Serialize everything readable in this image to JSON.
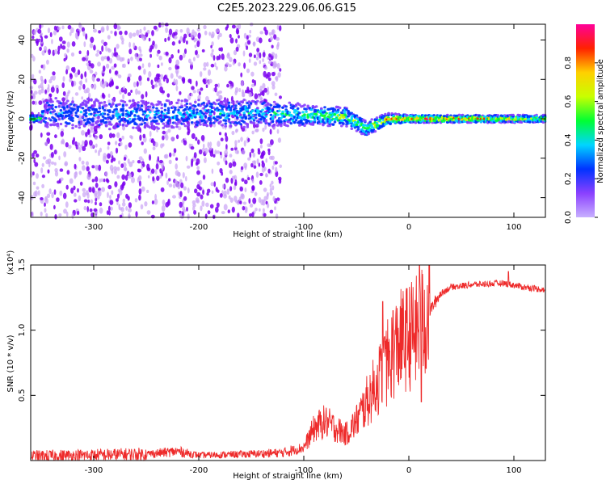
{
  "title": "C2E5.2023.229.06.06.G15",
  "colors": {
    "snr_line": "#ee2a2a",
    "spectrogram_sparse": "#c9a3f5",
    "spectrogram_dense": "#7a00f0",
    "colorbar": [
      "#c8b0ff",
      "#8a40ff",
      "#0033ff",
      "#00d5ff",
      "#00ff33",
      "#c8ff00",
      "#ffd000",
      "#ff2200",
      "#ff0099"
    ]
  },
  "chart_data": [
    {
      "type": "heatmap",
      "name": "spectrogram",
      "xlabel": "Height of straight line (km)",
      "ylabel": "Frequency (Hz)",
      "xlim": [
        -360,
        130
      ],
      "ylim": [
        -50,
        48
      ],
      "xticks": [
        -300,
        -200,
        -100,
        0,
        100
      ],
      "yticks": [
        -40,
        -20,
        0,
        20,
        40
      ],
      "colorbar": {
        "label": "Normalized spectral amplitude",
        "range": [
          0,
          1
        ],
        "ticks": [
          "0.0",
          "0.2",
          "0.4",
          "0.6",
          "0.8"
        ]
      },
      "profile": [
        {
          "x": -350,
          "center": 3,
          "width": 10,
          "amplitude": 0.3
        },
        {
          "x": -250,
          "center": 2,
          "width": 9,
          "amplitude": 0.35
        },
        {
          "x": -150,
          "center": 3,
          "width": 8,
          "amplitude": 0.4
        },
        {
          "x": -100,
          "center": 2,
          "width": 6,
          "amplitude": 0.5
        },
        {
          "x": -60,
          "center": 1,
          "width": 5,
          "amplitude": 0.6
        },
        {
          "x": -40,
          "center": -5,
          "width": 4,
          "amplitude": 0.55
        },
        {
          "x": -20,
          "center": 0,
          "width": 3,
          "amplitude": 0.8
        },
        {
          "x": 0,
          "center": 0,
          "width": 2,
          "amplitude": 0.85
        },
        {
          "x": 20,
          "center": 0,
          "width": 2,
          "amplitude": 0.9
        },
        {
          "x": 130,
          "center": 0,
          "width": 2,
          "amplitude": 0.6
        }
      ],
      "noise_region": {
        "x_from": -360,
        "x_to": -122,
        "y_from": -50,
        "y_to": 48
      }
    },
    {
      "type": "line",
      "name": "snr",
      "xlabel": "Height of straight line (km)",
      "ylabel": "SNR (10 * v/v)",
      "scale_label": "(x10⁴)",
      "xlim": [
        -360,
        130
      ],
      "ylim": [
        0,
        1.5
      ],
      "xticks": [
        -300,
        -200,
        -100,
        0,
        100
      ],
      "yticks": [
        0.5,
        1.0,
        1.5
      ],
      "ytick_labels": [
        "0.5",
        "1.0",
        "1.5"
      ],
      "x": [
        -360,
        -300,
        -250,
        -220,
        -200,
        -150,
        -120,
        -100,
        -90,
        -80,
        -70,
        -60,
        -50,
        -40,
        -30,
        -20,
        -10,
        0,
        10,
        20,
        30,
        40,
        60,
        90,
        110,
        130
      ],
      "y": [
        0.03,
        0.04,
        0.05,
        0.07,
        0.04,
        0.05,
        0.06,
        0.1,
        0.25,
        0.3,
        0.25,
        0.2,
        0.3,
        0.45,
        0.6,
        0.75,
        0.9,
        0.95,
        1.0,
        1.15,
        1.28,
        1.33,
        1.35,
        1.36,
        1.33,
        1.31
      ],
      "spikes": [
        [
          -25,
          1.22
        ],
        [
          -23,
          0.95
        ],
        [
          -15,
          1.15
        ],
        [
          10,
          1.5
        ],
        [
          12,
          0.45
        ],
        [
          95,
          1.45
        ]
      ]
    }
  ]
}
